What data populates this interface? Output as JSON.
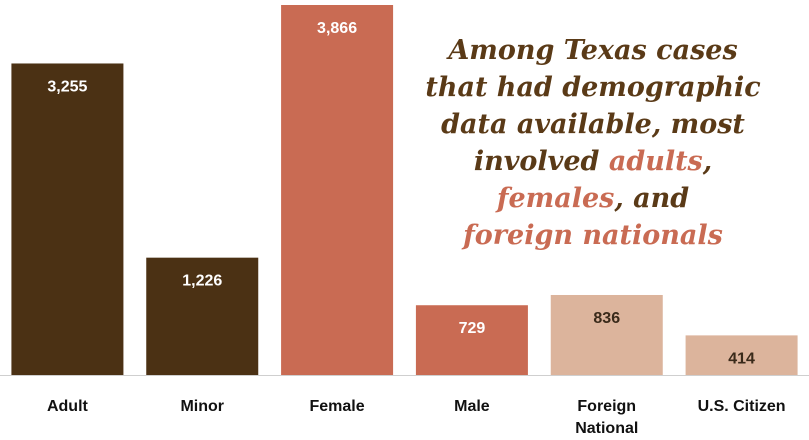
{
  "chart_data": {
    "type": "bar",
    "categories": [
      "Adult",
      "Minor",
      "Female",
      "Male",
      "Foreign National",
      "U.S. Citizen"
    ],
    "values": [
      3255,
      1226,
      3866,
      729,
      836,
      414
    ],
    "value_labels": [
      "3,255",
      "1,226",
      "3,866",
      "729",
      "836",
      "414"
    ],
    "colors": [
      "#4b3114",
      "#4b3114",
      "#c96b53",
      "#c96b53",
      "#dcb49c",
      "#dcb49c"
    ],
    "value_label_colors": [
      "#ffffff",
      "#ffffff",
      "#ffffff",
      "#ffffff",
      "#3a2a1a",
      "#3a2a1a"
    ],
    "annotation_lines": [
      [
        {
          "text": "Among Texas cases",
          "color": "#5a3a17"
        }
      ],
      [
        {
          "text": "that had demographic",
          "color": "#5a3a17"
        }
      ],
      [
        {
          "text": "data available, most",
          "color": "#5a3a17"
        }
      ],
      [
        {
          "text": "involved ",
          "color": "#5a3a17"
        },
        {
          "text": "adults",
          "color": "#c96b53"
        },
        {
          "text": ",",
          "color": "#5a3a17"
        }
      ],
      [
        {
          "text": "females",
          "color": "#c96b53"
        },
        {
          "text": ", and",
          "color": "#5a3a17"
        }
      ],
      [
        {
          "text": "foreign nationals",
          "color": "#c96b53"
        }
      ]
    ]
  }
}
